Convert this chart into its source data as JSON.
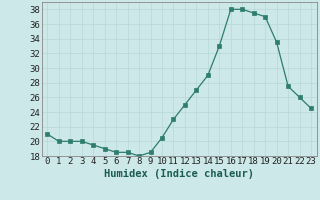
{
  "x": [
    0,
    1,
    2,
    3,
    4,
    5,
    6,
    7,
    8,
    9,
    10,
    11,
    12,
    13,
    14,
    15,
    16,
    17,
    18,
    19,
    20,
    21,
    22,
    23
  ],
  "y": [
    21,
    20,
    20,
    20,
    19.5,
    19,
    18.5,
    18.5,
    18,
    18.5,
    20.5,
    23,
    25,
    27,
    29,
    33,
    38,
    38,
    37.5,
    37,
    33.5,
    27.5,
    26,
    24.5
  ],
  "line_color": "#2e7d6e",
  "marker_color": "#2e7d6e",
  "bg_color": "#cce8e8",
  "grid_color": "#b8d8d8",
  "xlabel": "Humidex (Indice chaleur)",
  "ylim": [
    18,
    39
  ],
  "yticks": [
    18,
    20,
    22,
    24,
    26,
    28,
    30,
    32,
    34,
    36,
    38
  ],
  "xlim": [
    -0.5,
    23.5
  ],
  "xticks": [
    0,
    1,
    2,
    3,
    4,
    5,
    6,
    7,
    8,
    9,
    10,
    11,
    12,
    13,
    14,
    15,
    16,
    17,
    18,
    19,
    20,
    21,
    22,
    23
  ],
  "tick_fontsize": 6.5,
  "xlabel_fontsize": 7.5
}
